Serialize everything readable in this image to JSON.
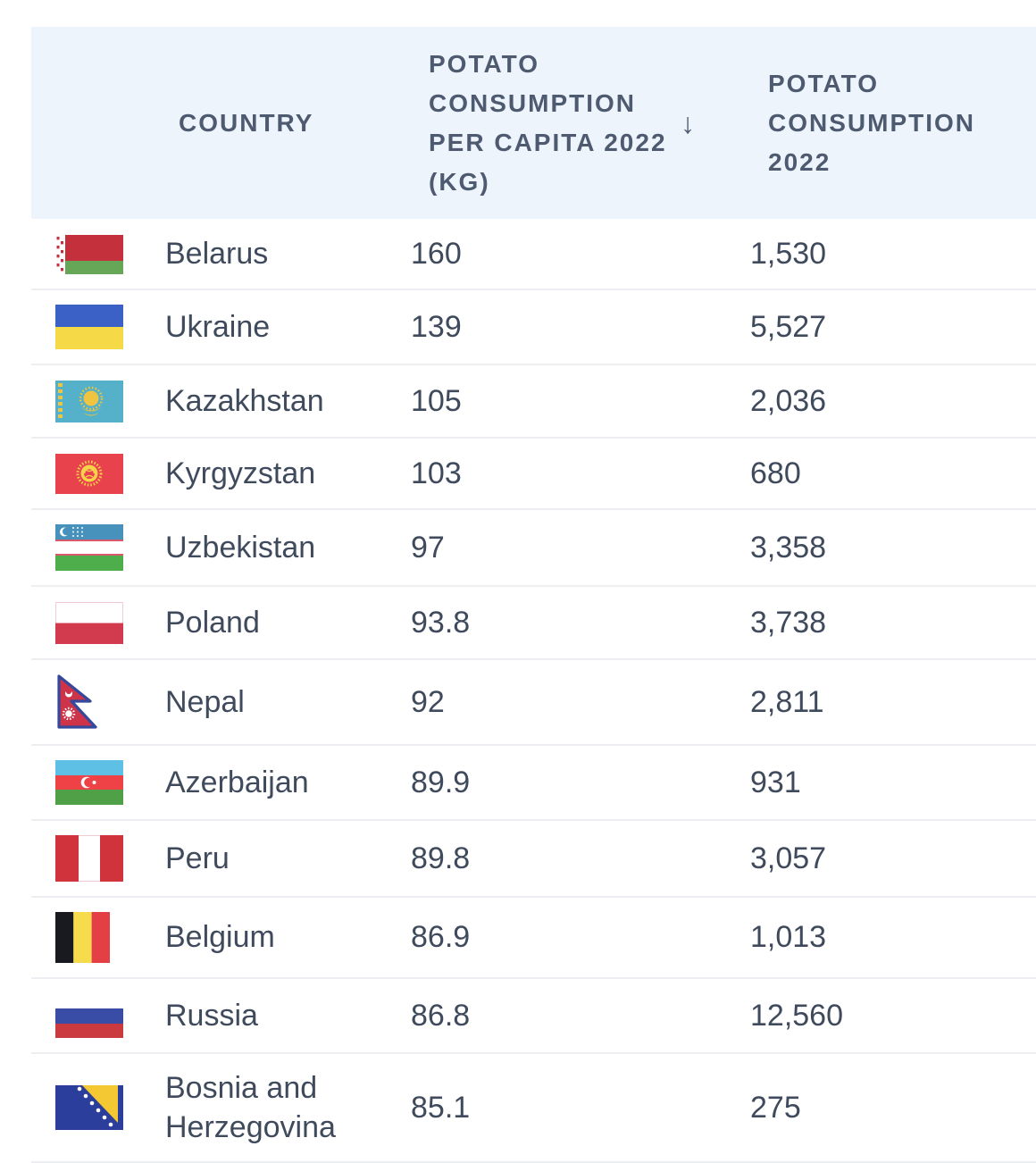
{
  "theme": {
    "page_bg": "#ffffff",
    "card_bg": "#ffffff",
    "header_bg": "#edf4fc",
    "header_text": "#4d5a70",
    "body_text": "#3f4a5c",
    "divider": "#eceef2"
  },
  "table": {
    "columns": {
      "country": {
        "label": "COUNTRY"
      },
      "per_capita": {
        "label": "POTATO CONSUMPTION PER CAPITA 2022 (KG)",
        "sort_icon": "arrow-down",
        "sort_direction": "descending"
      },
      "total": {
        "label": "POTATO CONSUMPTION 2022"
      }
    },
    "rows": [
      {
        "country": "Belarus",
        "flag": "belarus",
        "per_capita": "160",
        "total": "1,530"
      },
      {
        "country": "Ukraine",
        "flag": "ukraine",
        "per_capita": "139",
        "total": "5,527"
      },
      {
        "country": "Kazakhstan",
        "flag": "kazakhstan",
        "per_capita": "105",
        "total": "2,036"
      },
      {
        "country": "Kyrgyzstan",
        "flag": "kyrgyzstan",
        "per_capita": "103",
        "total": "680"
      },
      {
        "country": "Uzbekistan",
        "flag": "uzbekistan",
        "per_capita": "97",
        "total": "3,358"
      },
      {
        "country": "Poland",
        "flag": "poland",
        "per_capita": "93.8",
        "total": "3,738"
      },
      {
        "country": "Nepal",
        "flag": "nepal",
        "per_capita": "92",
        "total": "2,811"
      },
      {
        "country": "Azerbaijan",
        "flag": "azerbaijan",
        "per_capita": "89.9",
        "total": "931"
      },
      {
        "country": "Peru",
        "flag": "peru",
        "per_capita": "89.8",
        "total": "3,057"
      },
      {
        "country": "Belgium",
        "flag": "belgium",
        "per_capita": "86.9",
        "total": "1,013"
      },
      {
        "country": "Russia",
        "flag": "russia",
        "per_capita": "86.8",
        "total": "12,560"
      },
      {
        "country": "Bosnia and Herzegovina",
        "flag": "bosnia-and-herzegovina",
        "per_capita": "85.1",
        "total": "275"
      }
    ]
  }
}
